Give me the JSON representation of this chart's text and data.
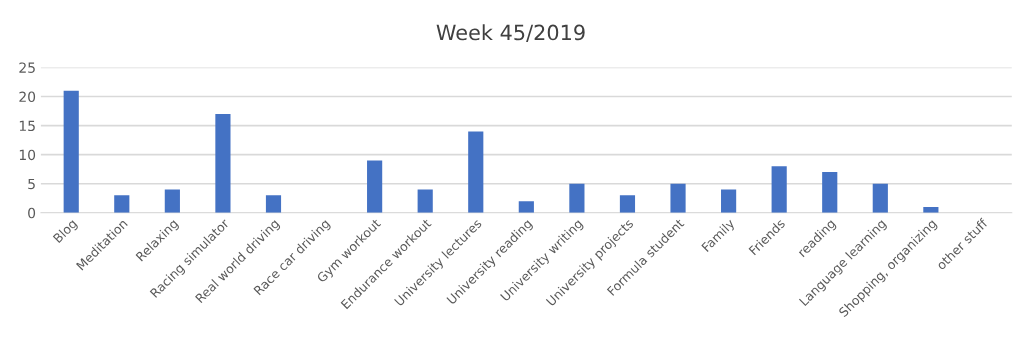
{
  "chart_data": {
    "type": "bar",
    "title": "Week 45/2019",
    "categories": [
      "Blog",
      "Meditation",
      "Relaxing",
      "Racing simulator",
      "Real world driving",
      "Race car driving",
      "Gym workout",
      "Endurance workout",
      "University lectures",
      "University reading",
      "University writing",
      "University projects",
      "Formula student",
      "Family",
      "Friends",
      "reading",
      "Language learning",
      "Shopping, organizing",
      "other stuff"
    ],
    "values": [
      21,
      3,
      4,
      17,
      3,
      0,
      9,
      4,
      14,
      2,
      5,
      3,
      5,
      4,
      8,
      7,
      5,
      1,
      0
    ],
    "color": "#4472c4",
    "ylim": [
      0,
      25
    ],
    "yticks": [
      0,
      5,
      10,
      15,
      20,
      25
    ],
    "grid": "y"
  }
}
